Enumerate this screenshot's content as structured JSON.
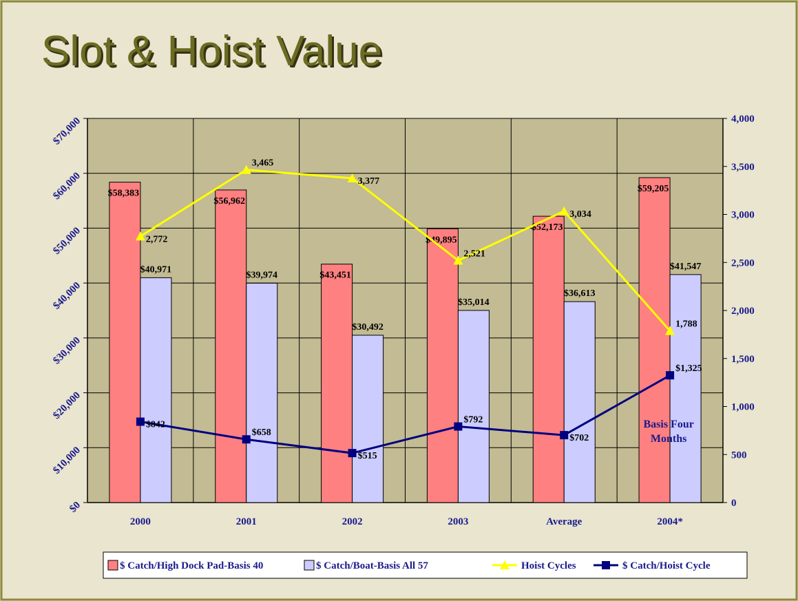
{
  "chart_data": {
    "type": "bar",
    "title": "Slot & Hoist Value",
    "categories": [
      "2000",
      "2001",
      "2002",
      "2003",
      "Average",
      "2004*"
    ],
    "series": [
      {
        "name": "$ Catch/High Dock Pad-Basis 40",
        "type": "bar",
        "axis": "y",
        "color": "#ff8080",
        "values": [
          58383,
          56962,
          43451,
          49895,
          52173,
          59205
        ],
        "value_labels": [
          "$58,383",
          "$56,962",
          "$43,451",
          "$49,895",
          "$52,173",
          "$59,205"
        ]
      },
      {
        "name": "$ Catch/Boat-Basis All 57",
        "type": "bar",
        "axis": "y",
        "color": "#ccccff",
        "values": [
          40971,
          39974,
          30492,
          35014,
          36613,
          41547
        ],
        "value_labels": [
          "$40,971",
          "$39,974",
          "$30,492",
          "$35,014",
          "$36,613",
          "$41,547"
        ]
      },
      {
        "name": "Hoist Cycles",
        "type": "line",
        "axis": "y2",
        "color": "#ffff00",
        "marker": "triangle",
        "values": [
          2772,
          3465,
          3377,
          2521,
          3034,
          1788
        ],
        "value_labels": [
          "2,772",
          "3,465",
          "3,377",
          "2,521",
          "3,034",
          "1,788"
        ]
      },
      {
        "name": "$ Catch/Hoist Cycle",
        "type": "line",
        "axis": "y2",
        "color": "#000080",
        "marker": "square",
        "values": [
          842,
          658,
          515,
          792,
          702,
          1325
        ],
        "value_labels": [
          "$842",
          "$658",
          "$515",
          "$792",
          "$702",
          "$1,325"
        ]
      }
    ],
    "ylim": [
      0,
      70000
    ],
    "yticks": [
      {
        "value": 0,
        "label": "$0"
      },
      {
        "value": 10000,
        "label": "$10,000"
      },
      {
        "value": 20000,
        "label": "$20,000"
      },
      {
        "value": 30000,
        "label": "$30,000"
      },
      {
        "value": 40000,
        "label": "$40,000"
      },
      {
        "value": 50000,
        "label": "$50,000"
      },
      {
        "value": 60000,
        "label": "$60,000"
      },
      {
        "value": 70000,
        "label": "$70,000"
      }
    ],
    "y2lim": [
      0,
      4000
    ],
    "y2ticks": [
      0,
      500,
      {
        "value": 1000,
        "label": "1,000"
      },
      {
        "value": 1500,
        "label": "1,500"
      },
      {
        "value": 2000,
        "label": "2,000"
      },
      {
        "value": 2500,
        "label": "2,500"
      },
      {
        "value": 3000,
        "label": "3,000"
      },
      {
        "value": 3500,
        "label": "3,500"
      },
      {
        "value": 4000,
        "label": "4,000"
      }
    ],
    "grid": true,
    "legend": "bottom",
    "annotation": "Basis Four Months"
  }
}
